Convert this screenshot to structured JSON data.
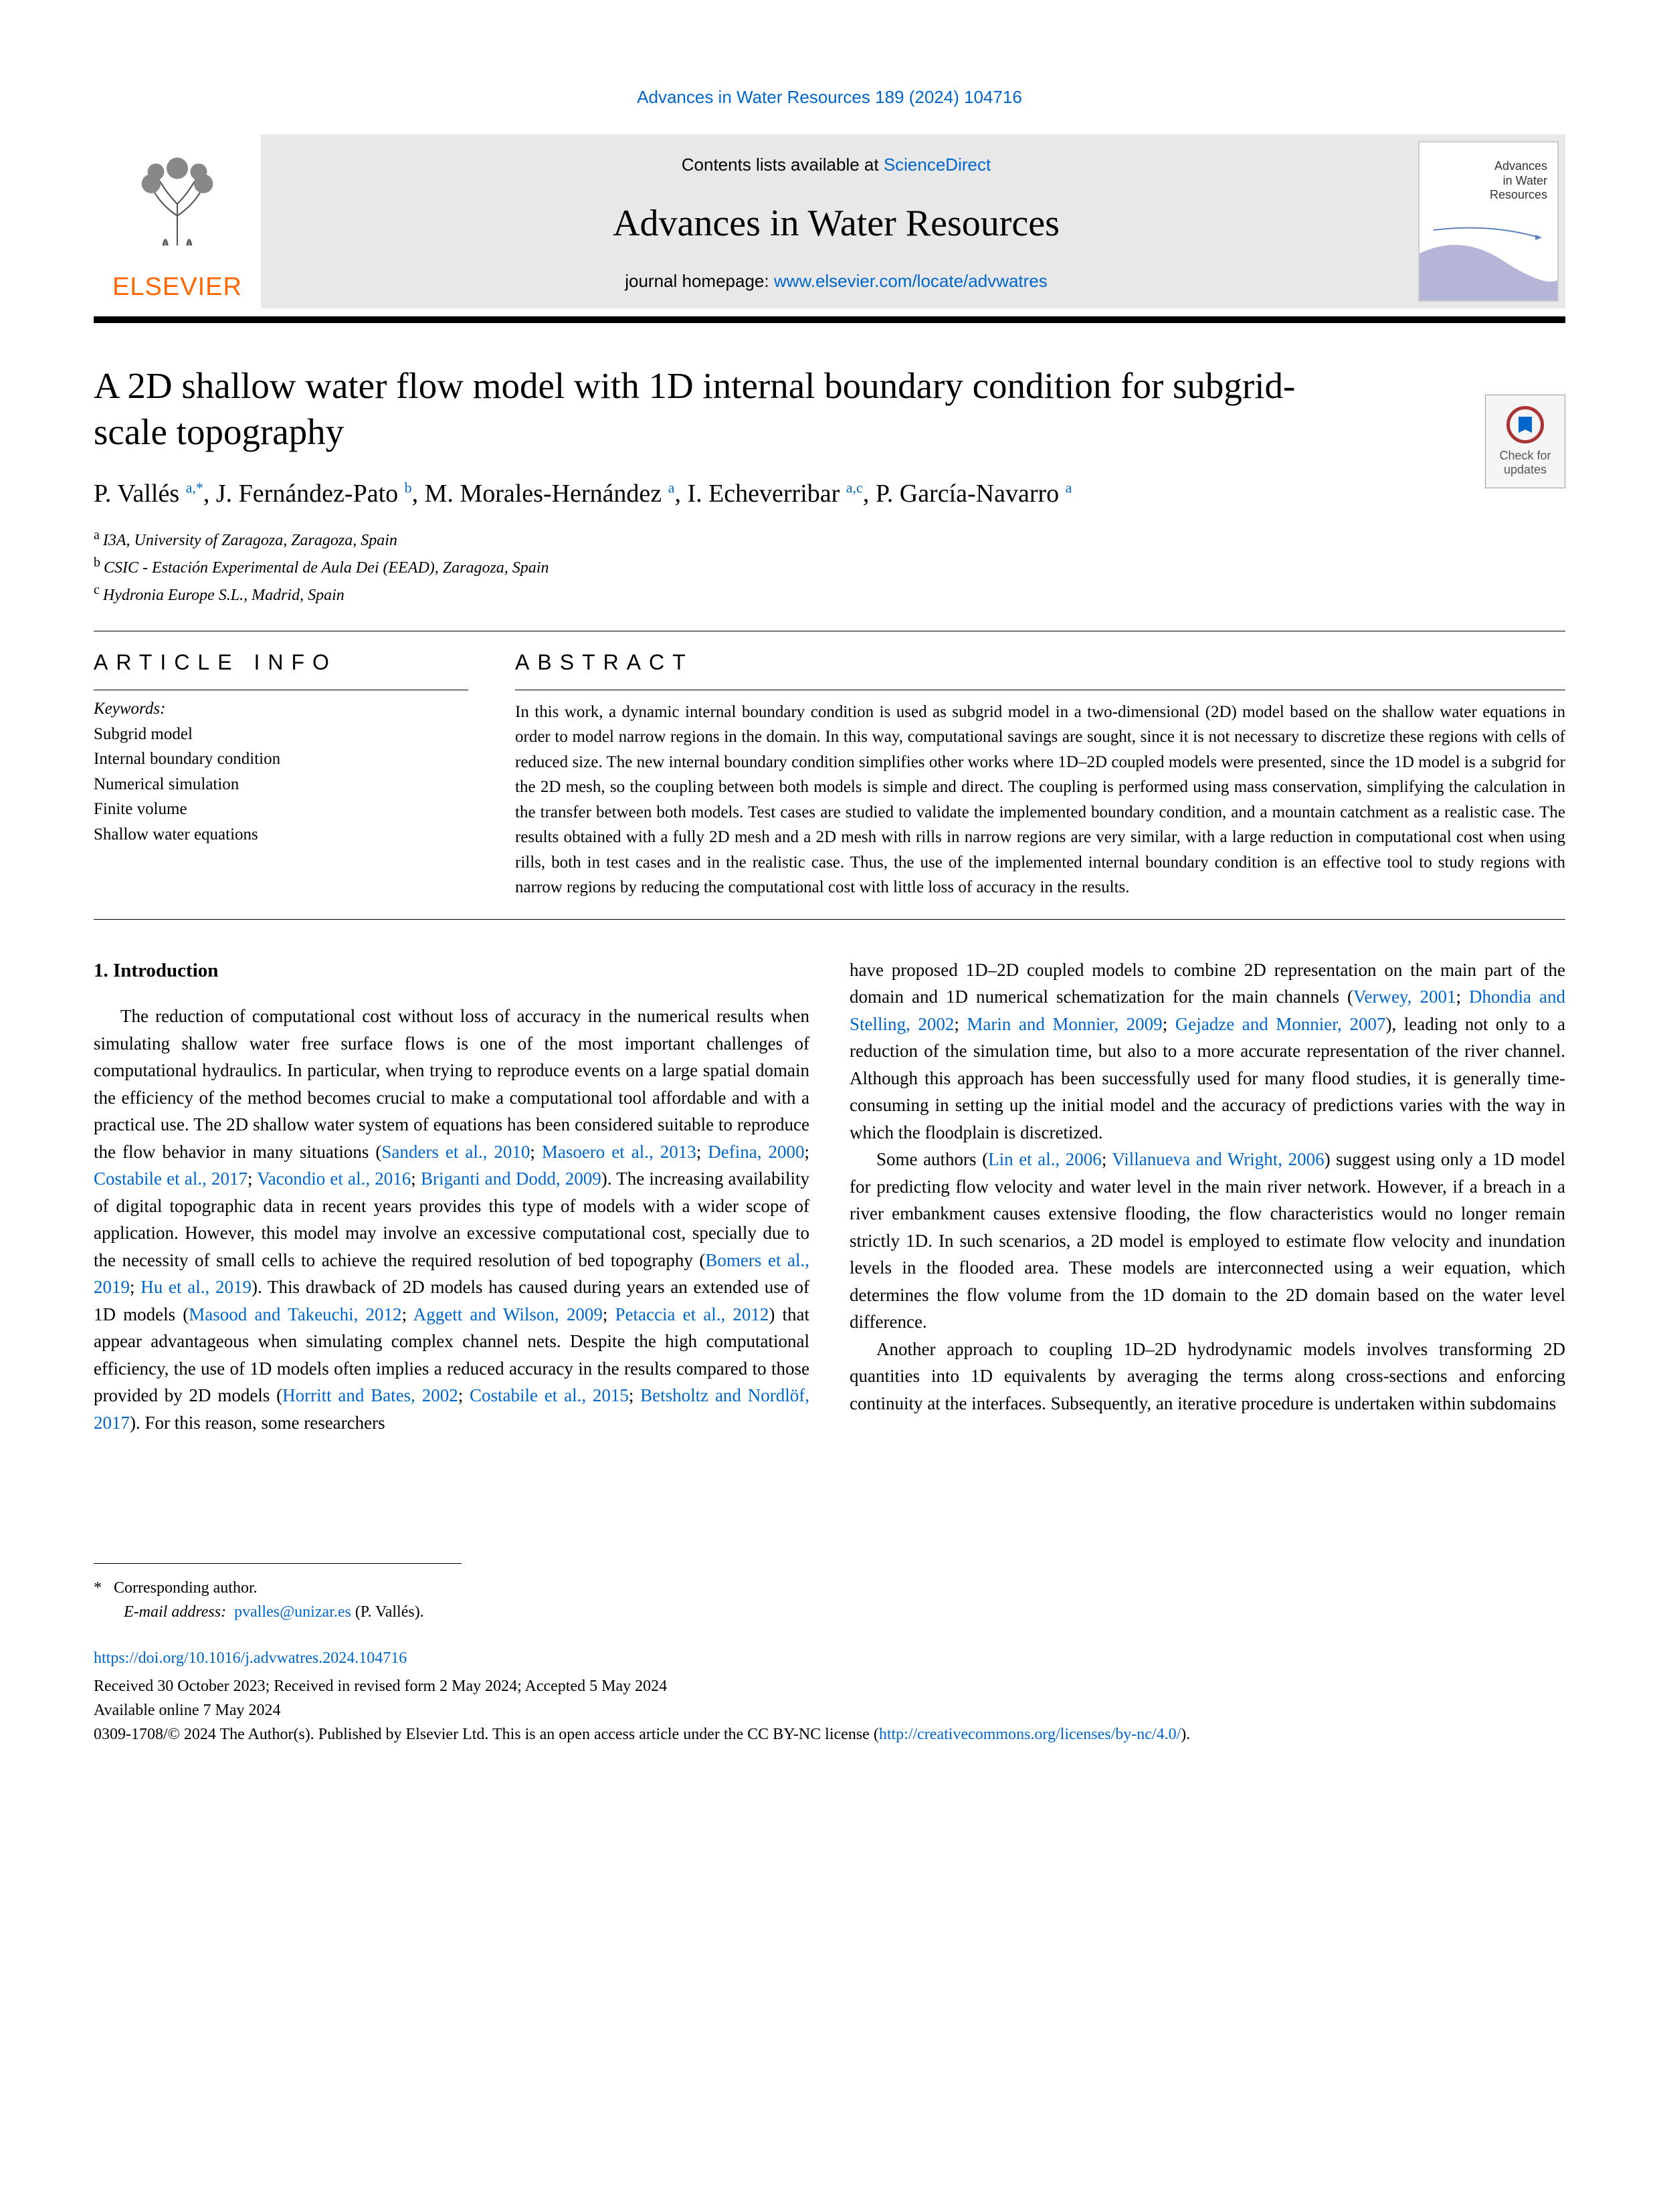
{
  "citation": "Advances in Water Resources 189 (2024) 104716",
  "header": {
    "contents_prefix": "Contents lists available at ",
    "contents_link": "ScienceDirect",
    "journal_name": "Advances in Water Resources",
    "homepage_prefix": "journal homepage: ",
    "homepage_url": "www.elsevier.com/locate/advwatres",
    "elsevier": "ELSEVIER",
    "cover_title_l1": "Advances",
    "cover_title_l2": "in Water",
    "cover_title_l3": "Resources"
  },
  "updates_badge": "Check for updates",
  "title": "A 2D shallow water flow model with 1D internal boundary condition for subgrid-scale topography",
  "authors": [
    {
      "name": "P. Vallés",
      "sup": "a,*"
    },
    {
      "name": "J. Fernández-Pato",
      "sup": "b"
    },
    {
      "name": "M. Morales-Hernández",
      "sup": "a"
    },
    {
      "name": "I. Echeverribar",
      "sup": "a,c"
    },
    {
      "name": "P. García-Navarro",
      "sup": "a"
    }
  ],
  "affiliations": [
    {
      "label": "a",
      "text": "I3A, University of Zaragoza, Zaragoza, Spain"
    },
    {
      "label": "b",
      "text": "CSIC - Estación Experimental de Aula Dei (EEAD), Zaragoza, Spain"
    },
    {
      "label": "c",
      "text": "Hydronia Europe S.L., Madrid, Spain"
    }
  ],
  "info": {
    "article_info_heading": "ARTICLE INFO",
    "abstract_heading": "ABSTRACT",
    "keywords_label": "Keywords:",
    "keywords": [
      "Subgrid model",
      "Internal boundary condition",
      "Numerical simulation",
      "Finite volume",
      "Shallow water equations"
    ],
    "abstract": "In this work, a dynamic internal boundary condition is used as subgrid model in a two-dimensional (2D) model based on the shallow water equations in order to model narrow regions in the domain. In this way, computational savings are sought, since it is not necessary to discretize these regions with cells of reduced size. The new internal boundary condition simplifies other works where 1D–2D coupled models were presented, since the 1D model is a subgrid for the 2D mesh, so the coupling between both models is simple and direct. The coupling is performed using mass conservation, simplifying the calculation in the transfer between both models. Test cases are studied to validate the implemented boundary condition, and a mountain catchment as a realistic case. The results obtained with a fully 2D mesh and a 2D mesh with rills in narrow regions are very similar, with a large reduction in computational cost when using rills, both in test cases and in the realistic case. Thus, the use of the implemented internal boundary condition is an effective tool to study regions with narrow regions by reducing the computational cost with little loss of accuracy in the results."
  },
  "intro": {
    "heading": "1. Introduction",
    "col1": {
      "p1a": "The reduction of computational cost without loss of accuracy in the numerical results when simulating shallow water free surface flows is one of the most important challenges of computational hydraulics. In particular, when trying to reproduce events on a large spatial domain the efficiency of the method becomes crucial to make a computational tool affordable and with a practical use. The 2D shallow water system of equations has been considered suitable to reproduce the flow behavior in many situations (",
      "c1": "Sanders et al., 2010",
      "s1": "; ",
      "c2": "Masoero et al., 2013",
      "s2": "; ",
      "c3": "Defina, 2000",
      "s3": "; ",
      "c4": "Costabile et al., 2017",
      "s4": "; ",
      "c5": "Vacondio et al., 2016",
      "s5": "; ",
      "c6": "Briganti and Dodd, 2009",
      "p1b": "). The increasing availability of digital topographic data in recent years provides this type of models with a wider scope of application. However, this model may involve an excessive computational cost, specially due to the necessity of small cells to achieve the required resolution of bed topography (",
      "c7": "Bomers et al., 2019",
      "s6": "; ",
      "c8": "Hu et al., 2019",
      "p1c": "). This drawback of 2D models has caused during years an extended use of 1D models (",
      "c9": "Masood and Takeuchi, 2012",
      "s7": "; ",
      "c10": "Aggett and Wilson, 2009",
      "s8": "; ",
      "c11": "Petaccia et al., 2012",
      "p1d": ") that appear advantageous when simulating complex channel nets. Despite the high computational efficiency, the use of 1D models often implies a reduced accuracy in the results compared to those provided by 2D models (",
      "c12": "Horritt and Bates, 2002",
      "s9": "; ",
      "c13": "Costabile et al., 2015",
      "s10": "; ",
      "c14": "Betsholtz and Nordlöf, 2017",
      "p1e": "). For this reason, some researchers"
    },
    "col2": {
      "p1a": "have proposed 1D–2D coupled models to combine 2D representation on the main part of the domain and 1D numerical schematization for the main channels (",
      "c1": "Verwey, 2001",
      "s1": "; ",
      "c2": "Dhondia and Stelling, 2002",
      "s2": "; ",
      "c3": "Marin and Monnier, 2009",
      "s3": "; ",
      "c4": "Gejadze and Monnier, 2007",
      "p1b": "), leading not only to a reduction of the simulation time, but also to a more accurate representation of the river channel. Although this approach has been successfully used for many flood studies, it is generally time-consuming in setting up the initial model and the accuracy of predictions varies with the way in which the floodplain is discretized.",
      "p2a": "Some authors (",
      "c5": "Lin et al., 2006",
      "s4": "; ",
      "c6": "Villanueva and Wright, 2006",
      "p2b": ") suggest using only a 1D model for predicting flow velocity and water level in the main river network. However, if a breach in a river embankment causes extensive flooding, the flow characteristics would no longer remain strictly 1D. In such scenarios, a 2D model is employed to estimate flow velocity and inundation levels in the flooded area. These models are interconnected using a weir equation, which determines the flow volume from the 1D domain to the 2D domain based on the water level difference.",
      "p3": "Another approach to coupling 1D–2D hydrodynamic models involves transforming 2D quantities into 1D equivalents by averaging the terms along cross-sections and enforcing continuity at the interfaces. Subsequently, an iterative procedure is undertaken within subdomains"
    }
  },
  "footer": {
    "corresp_star": "*",
    "corresp_text": "Corresponding author.",
    "email_label": "E-mail address:",
    "email": "pvalles@unizar.es",
    "email_suffix": " (P. Vallés).",
    "doi": "https://doi.org/10.1016/j.advwatres.2024.104716",
    "dates": "Received 30 October 2023; Received in revised form 2 May 2024; Accepted 5 May 2024",
    "available": "Available online 7 May 2024",
    "license_a": "0309-1708/© 2024 The Author(s). Published by Elsevier Ltd. This is an open access article under the CC BY-NC license (",
    "license_link": "http://creativecommons.org/licenses/by-nc/4.0/",
    "license_b": ")."
  },
  "colors": {
    "link": "#0066cc",
    "elsevier_orange": "#ff6600",
    "header_bg": "#e8e8e8"
  }
}
